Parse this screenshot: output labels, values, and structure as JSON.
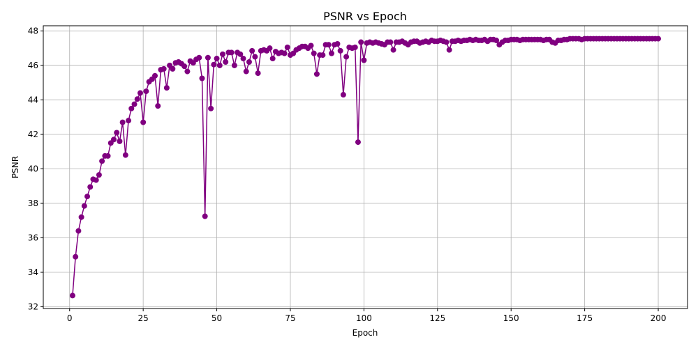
{
  "chart_data": {
    "type": "line",
    "title": "PSNR vs Epoch",
    "xlabel": "Epoch",
    "ylabel": "PSNR",
    "x": [
      1,
      2,
      3,
      4,
      5,
      6,
      7,
      8,
      9,
      10,
      11,
      12,
      13,
      14,
      15,
      16,
      17,
      18,
      19,
      20,
      21,
      22,
      23,
      24,
      25,
      26,
      27,
      28,
      29,
      30,
      31,
      32,
      33,
      34,
      35,
      36,
      37,
      38,
      39,
      40,
      41,
      42,
      43,
      44,
      45,
      46,
      47,
      48,
      49,
      50,
      51,
      52,
      53,
      54,
      55,
      56,
      57,
      58,
      59,
      60,
      61,
      62,
      63,
      64,
      65,
      66,
      67,
      68,
      69,
      70,
      71,
      72,
      73,
      74,
      75,
      76,
      77,
      78,
      79,
      80,
      81,
      82,
      83,
      84,
      85,
      86,
      87,
      88,
      89,
      90,
      91,
      92,
      93,
      94,
      95,
      96,
      97,
      98,
      99,
      100,
      101,
      102,
      103,
      104,
      105,
      106,
      107,
      108,
      109,
      110,
      111,
      112,
      113,
      114,
      115,
      116,
      117,
      118,
      119,
      120,
      121,
      122,
      123,
      124,
      125,
      126,
      127,
      128,
      129,
      130,
      131,
      132,
      133,
      134,
      135,
      136,
      137,
      138,
      139,
      140,
      141,
      142,
      143,
      144,
      145,
      146,
      147,
      148,
      149,
      150,
      151,
      152,
      153,
      154,
      155,
      156,
      157,
      158,
      159,
      160,
      161,
      162,
      163,
      164,
      165,
      166,
      167,
      168,
      169,
      170,
      171,
      172,
      173,
      174,
      175,
      176,
      177,
      178,
      179,
      180,
      181,
      182,
      183,
      184,
      185,
      186,
      187,
      188,
      189,
      190,
      191,
      192,
      193,
      194,
      195,
      196,
      197,
      198,
      199,
      200
    ],
    "series": [
      {
        "name": "PSNR",
        "color": "#800080",
        "values": [
          32.65,
          34.9,
          36.4,
          37.2,
          37.85,
          38.4,
          38.95,
          39.4,
          39.35,
          39.65,
          40.45,
          40.75,
          40.75,
          41.5,
          41.7,
          42.1,
          41.6,
          42.7,
          40.8,
          42.8,
          43.5,
          43.75,
          44.05,
          44.4,
          42.7,
          44.5,
          45.05,
          45.2,
          45.4,
          43.65,
          45.75,
          45.8,
          44.7,
          46.0,
          45.8,
          46.15,
          46.2,
          46.1,
          45.95,
          45.65,
          46.25,
          46.15,
          46.35,
          46.45,
          45.25,
          37.25,
          46.45,
          43.5,
          46.05,
          46.4,
          46.0,
          46.65,
          46.2,
          46.75,
          46.75,
          46.0,
          46.75,
          46.65,
          46.4,
          45.65,
          46.2,
          46.85,
          46.5,
          45.55,
          46.85,
          46.9,
          46.85,
          47.0,
          46.4,
          46.8,
          46.7,
          46.75,
          46.7,
          47.05,
          46.6,
          46.7,
          46.9,
          47.0,
          47.1,
          47.1,
          47.0,
          47.15,
          46.7,
          45.5,
          46.6,
          46.6,
          47.2,
          47.2,
          46.7,
          47.2,
          47.25,
          46.85,
          44.3,
          46.5,
          47.05,
          47.0,
          47.05,
          41.55,
          47.35,
          46.3,
          47.3,
          47.35,
          47.3,
          47.35,
          47.3,
          47.25,
          47.2,
          47.35,
          47.35,
          46.9,
          47.35,
          47.35,
          47.4,
          47.3,
          47.2,
          47.35,
          47.4,
          47.4,
          47.3,
          47.35,
          47.4,
          47.35,
          47.45,
          47.4,
          47.4,
          47.45,
          47.4,
          47.35,
          46.9,
          47.4,
          47.4,
          47.45,
          47.4,
          47.45,
          47.45,
          47.5,
          47.45,
          47.5,
          47.45,
          47.45,
          47.5,
          47.4,
          47.5,
          47.5,
          47.45,
          47.2,
          47.35,
          47.45,
          47.45,
          47.5,
          47.5,
          47.5,
          47.45,
          47.5,
          47.5,
          47.5,
          47.5,
          47.5,
          47.5,
          47.5,
          47.45,
          47.5,
          47.5,
          47.35,
          47.3,
          47.45,
          47.45,
          47.5,
          47.5,
          47.55,
          47.55,
          47.55,
          47.55,
          47.5,
          47.55,
          47.55,
          47.55,
          47.55,
          47.55,
          47.55,
          47.55,
          47.55,
          47.55,
          47.55,
          47.55,
          47.55,
          47.55,
          47.55,
          47.55,
          47.55,
          47.55,
          47.55,
          47.55,
          47.55,
          47.55,
          47.55,
          47.55,
          47.55,
          47.55,
          47.55
        ]
      }
    ],
    "xlim": [
      -8.95,
      209.95
    ],
    "ylim": [
      31.9,
      48.3
    ],
    "xticks": [
      0,
      25,
      50,
      75,
      100,
      125,
      150,
      175,
      200
    ],
    "yticks": [
      32,
      34,
      36,
      38,
      40,
      42,
      44,
      46,
      48
    ],
    "grid": true
  }
}
